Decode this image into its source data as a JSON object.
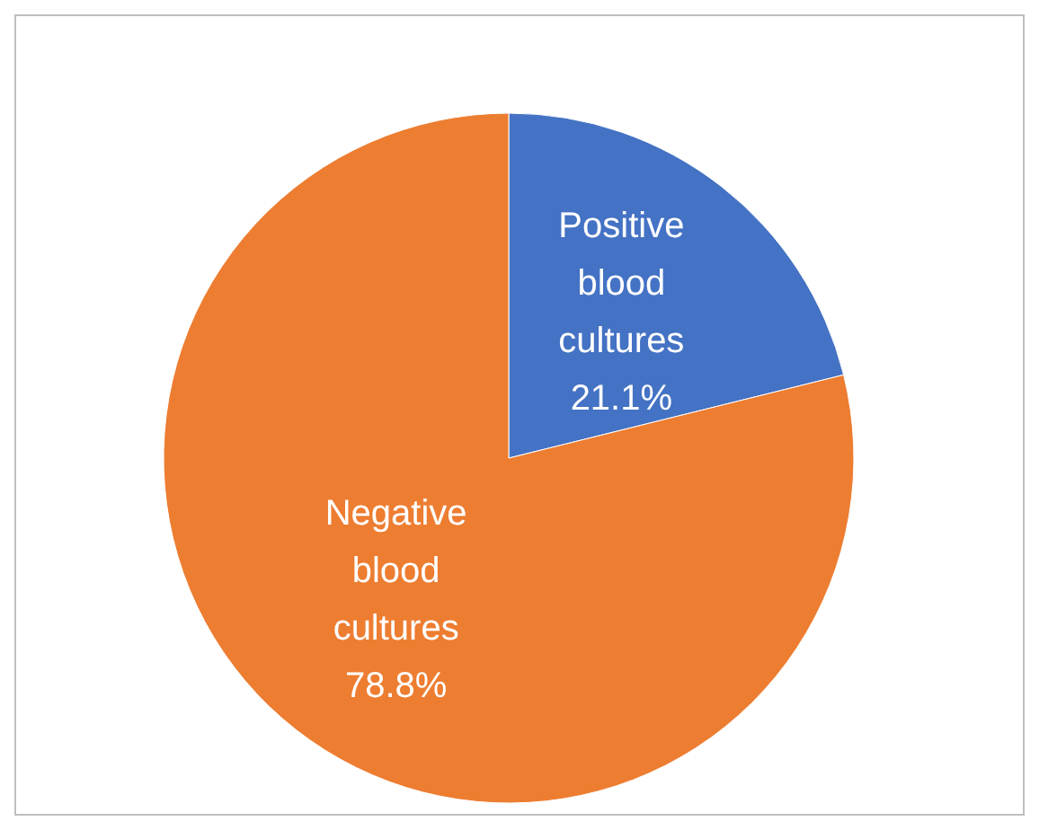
{
  "chart_data": {
    "type": "pie",
    "categories": [
      "Positive blood cultures",
      "Negative blood cultures"
    ],
    "values": [
      21.1,
      78.8
    ],
    "colors": [
      "#4472c4",
      "#ed7d31"
    ],
    "value_labels": [
      "21.1%",
      "78.8%"
    ]
  }
}
